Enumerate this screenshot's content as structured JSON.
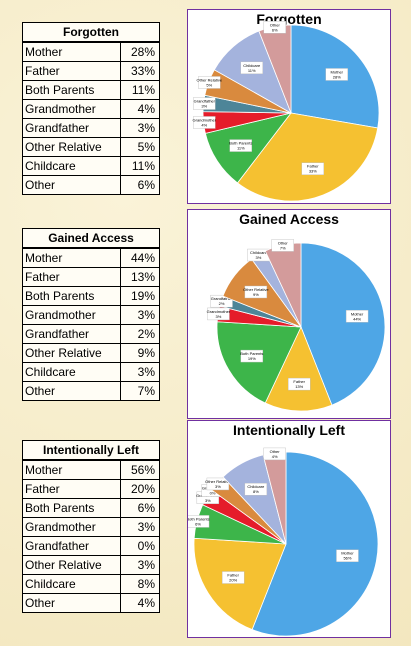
{
  "chart_data": [
    {
      "type": "pie",
      "title": "Forgotten",
      "categories": [
        "Mother",
        "Father",
        "Both Parents",
        "Grandmother",
        "Grandfather",
        "Other Relative",
        "Childcare",
        "Other"
      ],
      "values": [
        28,
        33,
        11,
        4,
        3,
        5,
        11,
        6
      ],
      "value_labels": [
        "28%",
        "33%",
        "11%",
        "4%",
        "3%",
        "5%",
        "11%",
        "6%"
      ],
      "colors": [
        "#4ea6e6",
        "#f5c131",
        "#3db54a",
        "#e51c2a",
        "#4d8598",
        "#d98a3e",
        "#a4b3dd",
        "#d39b9b"
      ]
    },
    {
      "type": "pie",
      "title": "Gained Access",
      "categories": [
        "Mother",
        "Father",
        "Both Parents",
        "Grandmother",
        "Grandfather",
        "Other Relative",
        "Childcare",
        "Other"
      ],
      "values": [
        44,
        13,
        19,
        3,
        2,
        9,
        3,
        7
      ],
      "value_labels": [
        "44%",
        "13%",
        "19%",
        "3%",
        "2%",
        "9%",
        "3%",
        "7%"
      ],
      "colors": [
        "#4ea6e6",
        "#f5c131",
        "#3db54a",
        "#e51c2a",
        "#4d8598",
        "#d98a3e",
        "#a4b3dd",
        "#d39b9b"
      ]
    },
    {
      "type": "pie",
      "title": "Intentionally Left",
      "categories": [
        "Mother",
        "Father",
        "Both Parents",
        "Grandmother",
        "Grandfather",
        "Other Relative",
        "Childcare",
        "Other"
      ],
      "values": [
        56,
        20,
        6,
        3,
        0,
        3,
        8,
        4
      ],
      "value_labels": [
        "56%",
        "20%",
        "6%",
        "3%",
        "0%",
        "3%",
        "8%",
        "4%"
      ],
      "colors": [
        "#4ea6e6",
        "#f5c131",
        "#3db54a",
        "#e51c2a",
        "#4d8598",
        "#d98a3e",
        "#a4b3dd",
        "#d39b9b"
      ]
    }
  ]
}
